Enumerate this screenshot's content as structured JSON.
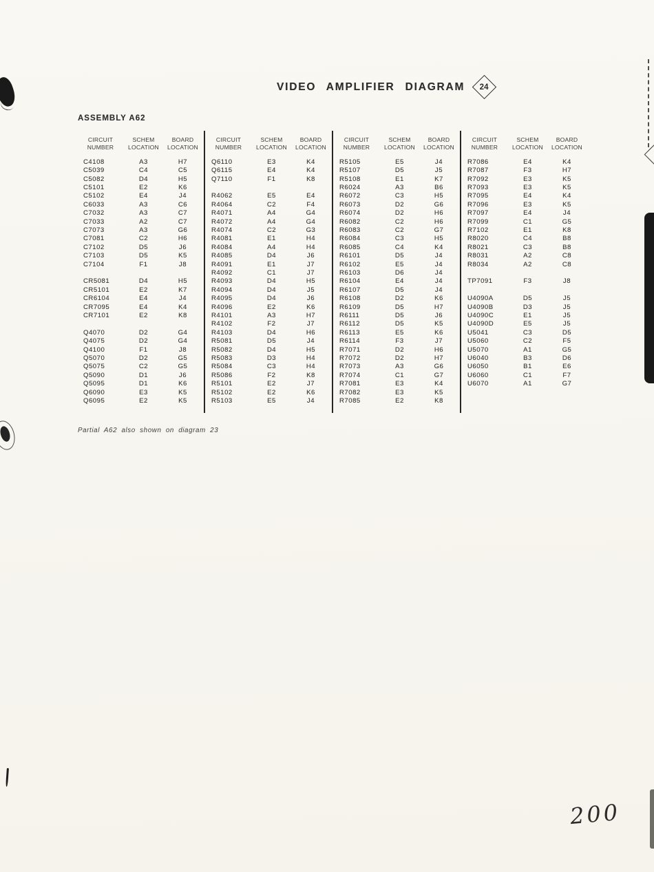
{
  "page": {
    "title": "VIDEO AMPLIFIER DIAGRAM",
    "diagram_number": "24",
    "assembly": "ASSEMBLY A62",
    "footnote": "Partial A62 also shown on diagram 23",
    "page_number": "200"
  },
  "table": {
    "column_headers": [
      {
        "line1": "CIRCUIT",
        "line2": "NUMBER"
      },
      {
        "line1": "SCHEM",
        "line2": "LOCATION"
      },
      {
        "line1": "BOARD",
        "line2": "LOCATION"
      }
    ],
    "groups": [
      {
        "rows": [
          [
            "C4108",
            "A3",
            "H7"
          ],
          [
            "C5039",
            "C4",
            "C5"
          ],
          [
            "C5082",
            "D4",
            "H5"
          ],
          [
            "C5101",
            "E2",
            "K6"
          ],
          [
            "C5102",
            "E4",
            "J4"
          ],
          [
            "C6033",
            "A3",
            "C6"
          ],
          [
            "C7032",
            "A3",
            "C7"
          ],
          [
            "C7033",
            "A2",
            "C7"
          ],
          [
            "C7073",
            "A3",
            "G6"
          ],
          [
            "C7081",
            "C2",
            "H6"
          ],
          [
            "C7102",
            "D5",
            "J6"
          ],
          [
            "C7103",
            "D5",
            "K5"
          ],
          [
            "C7104",
            "F1",
            "J8"
          ],
          null,
          [
            "CR5081",
            "D4",
            "H5"
          ],
          [
            "CR5101",
            "E2",
            "K7"
          ],
          [
            "CR6104",
            "E4",
            "J4"
          ],
          [
            "CR7095",
            "E4",
            "K4"
          ],
          [
            "CR7101",
            "E2",
            "K8"
          ],
          null,
          [
            "Q4070",
            "D2",
            "G4"
          ],
          [
            "Q4075",
            "D2",
            "G4"
          ],
          [
            "Q4100",
            "F1",
            "J8"
          ],
          [
            "Q5070",
            "D2",
            "G5"
          ],
          [
            "Q5075",
            "C2",
            "G5"
          ],
          [
            "Q5090",
            "D1",
            "J6"
          ],
          [
            "Q5095",
            "D1",
            "K6"
          ],
          [
            "Q6090",
            "E3",
            "K5"
          ],
          [
            "Q6095",
            "E2",
            "K5"
          ]
        ]
      },
      {
        "rows": [
          [
            "Q6110",
            "E3",
            "K4"
          ],
          [
            "Q6115",
            "E4",
            "K4"
          ],
          [
            "Q7110",
            "F1",
            "K8"
          ],
          null,
          [
            "R4062",
            "E5",
            "E4"
          ],
          [
            "R4064",
            "C2",
            "F4"
          ],
          [
            "R4071",
            "A4",
            "G4"
          ],
          [
            "R4072",
            "A4",
            "G4"
          ],
          [
            "R4074",
            "C2",
            "G3"
          ],
          [
            "R4081",
            "E1",
            "H4"
          ],
          [
            "R4084",
            "A4",
            "H4"
          ],
          [
            "R4085",
            "D4",
            "J6"
          ],
          [
            "R4091",
            "E1",
            "J7"
          ],
          [
            "R4092",
            "C1",
            "J7"
          ],
          [
            "R4093",
            "D4",
            "H5"
          ],
          [
            "R4094",
            "D4",
            "J5"
          ],
          [
            "R4095",
            "D4",
            "J6"
          ],
          [
            "R4096",
            "E2",
            "K6"
          ],
          [
            "R4101",
            "A3",
            "H7"
          ],
          [
            "R4102",
            "F2",
            "J7"
          ],
          [
            "R4103",
            "D4",
            "H6"
          ],
          [
            "R5081",
            "D5",
            "J4"
          ],
          [
            "R5082",
            "D4",
            "H5"
          ],
          [
            "R5083",
            "D3",
            "H4"
          ],
          [
            "R5084",
            "C3",
            "H4"
          ],
          [
            "R5086",
            "F2",
            "K8"
          ],
          [
            "R5101",
            "E2",
            "J7"
          ],
          [
            "R5102",
            "E2",
            "K6"
          ],
          [
            "R5103",
            "E5",
            "J4"
          ]
        ]
      },
      {
        "rows": [
          [
            "R5105",
            "E5",
            "J4"
          ],
          [
            "R5107",
            "D5",
            "J5"
          ],
          [
            "R5108",
            "E1",
            "K7"
          ],
          [
            "R6024",
            "A3",
            "B6"
          ],
          [
            "R6072",
            "C3",
            "H5"
          ],
          [
            "R6073",
            "D2",
            "G6"
          ],
          [
            "R6074",
            "D2",
            "H6"
          ],
          [
            "R6082",
            "C2",
            "H6"
          ],
          [
            "R6083",
            "C2",
            "G7"
          ],
          [
            "R6084",
            "C3",
            "H5"
          ],
          [
            "R6085",
            "C4",
            "K4"
          ],
          [
            "R6101",
            "D5",
            "J4"
          ],
          [
            "R6102",
            "E5",
            "J4"
          ],
          [
            "R6103",
            "D6",
            "J4"
          ],
          [
            "R6104",
            "E4",
            "J4"
          ],
          [
            "R6107",
            "D5",
            "J4"
          ],
          [
            "R6108",
            "D2",
            "K6"
          ],
          [
            "R6109",
            "D5",
            "H7"
          ],
          [
            "R6111",
            "D5",
            "J6"
          ],
          [
            "R6112",
            "D5",
            "K5"
          ],
          [
            "R6113",
            "E5",
            "K6"
          ],
          [
            "R6114",
            "F3",
            "J7"
          ],
          [
            "R7071",
            "D2",
            "H6"
          ],
          [
            "R7072",
            "D2",
            "H7"
          ],
          [
            "R7073",
            "A3",
            "G6"
          ],
          [
            "R7074",
            "C1",
            "G7"
          ],
          [
            "R7081",
            "E3",
            "K4"
          ],
          [
            "R7082",
            "E3",
            "K5"
          ],
          [
            "R7085",
            "E2",
            "K8"
          ]
        ]
      },
      {
        "rows": [
          [
            "R7086",
            "E4",
            "K4"
          ],
          [
            "R7087",
            "F3",
            "H7"
          ],
          [
            "R7092",
            "E3",
            "K5"
          ],
          [
            "R7093",
            "E3",
            "K5"
          ],
          [
            "R7095",
            "E4",
            "K4"
          ],
          [
            "R7096",
            "E3",
            "K5"
          ],
          [
            "R7097",
            "E4",
            "J4"
          ],
          [
            "R7099",
            "C1",
            "G5"
          ],
          [
            "R7102",
            "E1",
            "K8"
          ],
          [
            "R8020",
            "C4",
            "B8"
          ],
          [
            "R8021",
            "C3",
            "B8"
          ],
          [
            "R8031",
            "A2",
            "C8"
          ],
          [
            "R8034",
            "A2",
            "C8"
          ],
          null,
          [
            "TP7091",
            "F3",
            "J8"
          ],
          null,
          [
            "U4090A",
            "D5",
            "J5"
          ],
          [
            "U4090B",
            "D3",
            "J5"
          ],
          [
            "U4090C",
            "E1",
            "J5"
          ],
          [
            "U4090D",
            "E5",
            "J5"
          ],
          [
            "U5041",
            "C3",
            "D5"
          ],
          [
            "U5060",
            "C2",
            "F5"
          ],
          [
            "U5070",
            "A1",
            "G5"
          ],
          [
            "U6040",
            "B3",
            "D6"
          ],
          [
            "U6050",
            "B1",
            "E6"
          ],
          [
            "U6060",
            "C1",
            "F7"
          ],
          [
            "U6070",
            "A1",
            "G7"
          ]
        ]
      }
    ]
  }
}
